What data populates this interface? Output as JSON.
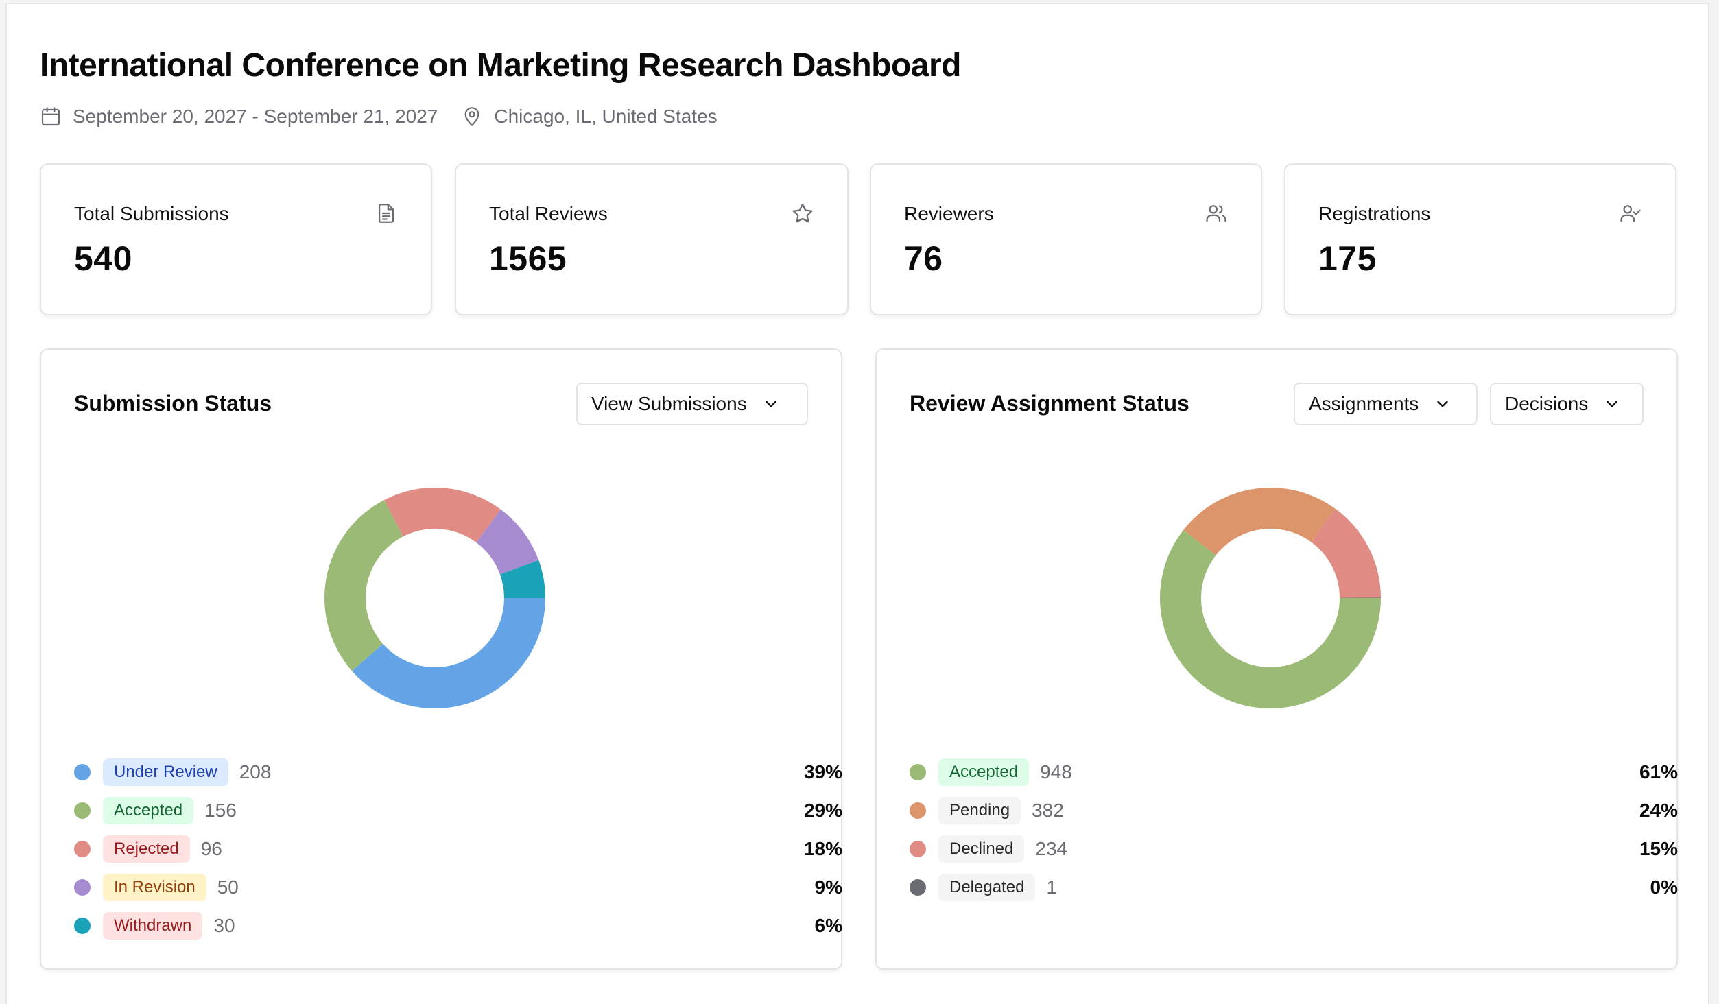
{
  "header": {
    "title": "International Conference on Marketing Research Dashboard",
    "dates": "September 20, 2027 - September 21, 2027",
    "location": "Chicago, IL, United States"
  },
  "stats": [
    {
      "label": "Total Submissions",
      "value": "540",
      "icon": "document-icon"
    },
    {
      "label": "Total Reviews",
      "value": "1565",
      "icon": "star-icon"
    },
    {
      "label": "Reviewers",
      "value": "76",
      "icon": "users-icon"
    },
    {
      "label": "Registrations",
      "value": "175",
      "icon": "user-check-icon"
    }
  ],
  "submission_panel": {
    "title": "Submission Status",
    "dropdown_label": "View Submissions",
    "legend": [
      {
        "label": "Under Review",
        "count": "208",
        "pct": "39%",
        "color": "#64a4e6",
        "badge_bg": "#dbeafe",
        "badge_fg": "#1e40af"
      },
      {
        "label": "Accepted",
        "count": "156",
        "pct": "29%",
        "color": "#9aba76",
        "badge_bg": "#dcfce7",
        "badge_fg": "#166534"
      },
      {
        "label": "Rejected",
        "count": "96",
        "pct": "18%",
        "color": "#e08b84",
        "badge_bg": "#fee2e2",
        "badge_fg": "#991b1b"
      },
      {
        "label": "In Revision",
        "count": "50",
        "pct": "9%",
        "color": "#a68bd0",
        "badge_bg": "#fef3c7",
        "badge_fg": "#92400e"
      },
      {
        "label": "Withdrawn",
        "count": "30",
        "pct": "6%",
        "color": "#1aa3b8",
        "badge_bg": "#fee2e2",
        "badge_fg": "#991b1b"
      }
    ]
  },
  "review_panel": {
    "title": "Review Assignment Status",
    "dropdown_1_label": "Assignments",
    "dropdown_2_label": "Decisions",
    "legend": [
      {
        "label": "Accepted",
        "count": "948",
        "pct": "61%",
        "color": "#9aba76",
        "badge_bg": "#dcfce7",
        "badge_fg": "#166534"
      },
      {
        "label": "Pending",
        "count": "382",
        "pct": "24%",
        "color": "#dc956a",
        "badge_bg": "#f4f4f5",
        "badge_fg": "#27272a"
      },
      {
        "label": "Declined",
        "count": "234",
        "pct": "15%",
        "color": "#e08b84",
        "badge_bg": "#f4f4f5",
        "badge_fg": "#27272a"
      },
      {
        "label": "Delegated",
        "count": "1",
        "pct": "0%",
        "color": "#6b6b73",
        "badge_bg": "#f4f4f5",
        "badge_fg": "#27272a"
      }
    ]
  },
  "chart_data": [
    {
      "type": "pie",
      "categories": [
        "Under Review",
        "Accepted",
        "Rejected",
        "In Revision",
        "Withdrawn"
      ],
      "values": [
        208,
        156,
        96,
        50,
        30
      ],
      "colors": [
        "#64a4e6",
        "#9aba76",
        "#e08b84",
        "#a68bd0",
        "#1aa3b8"
      ]
    },
    {
      "type": "pie",
      "categories": [
        "Accepted",
        "Pending",
        "Declined",
        "Delegated"
      ],
      "values": [
        948,
        382,
        234,
        1
      ],
      "colors": [
        "#9aba76",
        "#dc956a",
        "#e08b84",
        "#6b6b73"
      ]
    }
  ]
}
